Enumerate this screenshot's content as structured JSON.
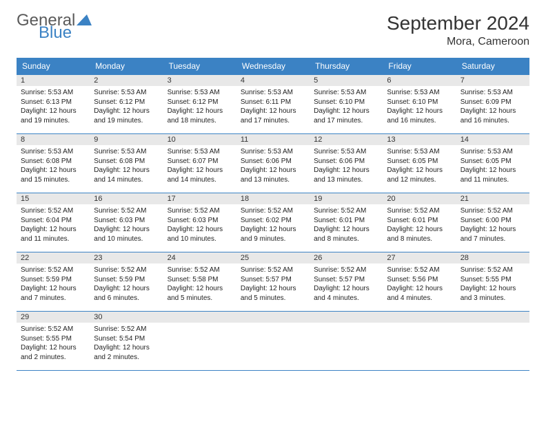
{
  "brand": {
    "general": "General",
    "blue": "Blue",
    "triangle_color": "#3b82c4"
  },
  "title": "September 2024",
  "location": "Mora, Cameroon",
  "colors": {
    "header_bg": "#3b82c4",
    "header_text": "#ffffff",
    "daynum_bg": "#e8e8e8",
    "border": "#3b82c4",
    "text": "#222222"
  },
  "day_headers": [
    "Sunday",
    "Monday",
    "Tuesday",
    "Wednesday",
    "Thursday",
    "Friday",
    "Saturday"
  ],
  "weeks": [
    [
      {
        "num": "1",
        "sunrise": "5:53 AM",
        "sunset": "6:13 PM",
        "daylight": "12 hours and 19 minutes."
      },
      {
        "num": "2",
        "sunrise": "5:53 AM",
        "sunset": "6:12 PM",
        "daylight": "12 hours and 19 minutes."
      },
      {
        "num": "3",
        "sunrise": "5:53 AM",
        "sunset": "6:12 PM",
        "daylight": "12 hours and 18 minutes."
      },
      {
        "num": "4",
        "sunrise": "5:53 AM",
        "sunset": "6:11 PM",
        "daylight": "12 hours and 17 minutes."
      },
      {
        "num": "5",
        "sunrise": "5:53 AM",
        "sunset": "6:10 PM",
        "daylight": "12 hours and 17 minutes."
      },
      {
        "num": "6",
        "sunrise": "5:53 AM",
        "sunset": "6:10 PM",
        "daylight": "12 hours and 16 minutes."
      },
      {
        "num": "7",
        "sunrise": "5:53 AM",
        "sunset": "6:09 PM",
        "daylight": "12 hours and 16 minutes."
      }
    ],
    [
      {
        "num": "8",
        "sunrise": "5:53 AM",
        "sunset": "6:08 PM",
        "daylight": "12 hours and 15 minutes."
      },
      {
        "num": "9",
        "sunrise": "5:53 AM",
        "sunset": "6:08 PM",
        "daylight": "12 hours and 14 minutes."
      },
      {
        "num": "10",
        "sunrise": "5:53 AM",
        "sunset": "6:07 PM",
        "daylight": "12 hours and 14 minutes."
      },
      {
        "num": "11",
        "sunrise": "5:53 AM",
        "sunset": "6:06 PM",
        "daylight": "12 hours and 13 minutes."
      },
      {
        "num": "12",
        "sunrise": "5:53 AM",
        "sunset": "6:06 PM",
        "daylight": "12 hours and 13 minutes."
      },
      {
        "num": "13",
        "sunrise": "5:53 AM",
        "sunset": "6:05 PM",
        "daylight": "12 hours and 12 minutes."
      },
      {
        "num": "14",
        "sunrise": "5:53 AM",
        "sunset": "6:05 PM",
        "daylight": "12 hours and 11 minutes."
      }
    ],
    [
      {
        "num": "15",
        "sunrise": "5:52 AM",
        "sunset": "6:04 PM",
        "daylight": "12 hours and 11 minutes."
      },
      {
        "num": "16",
        "sunrise": "5:52 AM",
        "sunset": "6:03 PM",
        "daylight": "12 hours and 10 minutes."
      },
      {
        "num": "17",
        "sunrise": "5:52 AM",
        "sunset": "6:03 PM",
        "daylight": "12 hours and 10 minutes."
      },
      {
        "num": "18",
        "sunrise": "5:52 AM",
        "sunset": "6:02 PM",
        "daylight": "12 hours and 9 minutes."
      },
      {
        "num": "19",
        "sunrise": "5:52 AM",
        "sunset": "6:01 PM",
        "daylight": "12 hours and 8 minutes."
      },
      {
        "num": "20",
        "sunrise": "5:52 AM",
        "sunset": "6:01 PM",
        "daylight": "12 hours and 8 minutes."
      },
      {
        "num": "21",
        "sunrise": "5:52 AM",
        "sunset": "6:00 PM",
        "daylight": "12 hours and 7 minutes."
      }
    ],
    [
      {
        "num": "22",
        "sunrise": "5:52 AM",
        "sunset": "5:59 PM",
        "daylight": "12 hours and 7 minutes."
      },
      {
        "num": "23",
        "sunrise": "5:52 AM",
        "sunset": "5:59 PM",
        "daylight": "12 hours and 6 minutes."
      },
      {
        "num": "24",
        "sunrise": "5:52 AM",
        "sunset": "5:58 PM",
        "daylight": "12 hours and 5 minutes."
      },
      {
        "num": "25",
        "sunrise": "5:52 AM",
        "sunset": "5:57 PM",
        "daylight": "12 hours and 5 minutes."
      },
      {
        "num": "26",
        "sunrise": "5:52 AM",
        "sunset": "5:57 PM",
        "daylight": "12 hours and 4 minutes."
      },
      {
        "num": "27",
        "sunrise": "5:52 AM",
        "sunset": "5:56 PM",
        "daylight": "12 hours and 4 minutes."
      },
      {
        "num": "28",
        "sunrise": "5:52 AM",
        "sunset": "5:55 PM",
        "daylight": "12 hours and 3 minutes."
      }
    ],
    [
      {
        "num": "29",
        "sunrise": "5:52 AM",
        "sunset": "5:55 PM",
        "daylight": "12 hours and 2 minutes."
      },
      {
        "num": "30",
        "sunrise": "5:52 AM",
        "sunset": "5:54 PM",
        "daylight": "12 hours and 2 minutes."
      },
      null,
      null,
      null,
      null,
      null
    ]
  ],
  "labels": {
    "sunrise": "Sunrise: ",
    "sunset": "Sunset: ",
    "daylight": "Daylight: "
  }
}
